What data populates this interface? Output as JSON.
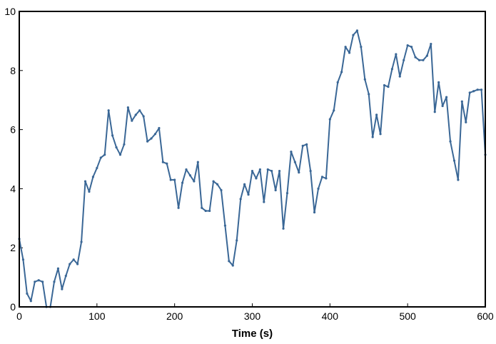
{
  "chart_data": {
    "type": "line",
    "title": "",
    "xlabel": "Time (s)",
    "ylabel": "",
    "xlim": [
      0,
      600
    ],
    "ylim": [
      0,
      10
    ],
    "xticks": [
      0,
      100,
      200,
      300,
      400,
      500,
      600
    ],
    "yticks": [
      0,
      2,
      4,
      6,
      8,
      10
    ],
    "grid": false,
    "legend": "none",
    "line_color": "#3a6796",
    "series": [
      {
        "x": [
          0,
          5,
          10,
          15,
          20,
          25,
          30,
          35,
          40,
          45,
          50,
          55,
          60,
          65,
          70,
          75,
          80,
          85,
          90,
          95,
          100,
          105,
          110,
          115,
          120,
          125,
          130,
          135,
          140,
          145,
          150,
          155,
          160,
          165,
          170,
          175,
          180,
          185,
          190,
          195,
          200,
          205,
          210,
          215,
          220,
          225,
          230,
          235,
          240,
          245,
          250,
          255,
          260,
          265,
          270,
          275,
          280,
          285,
          290,
          295,
          300,
          305,
          310,
          315,
          320,
          325,
          330,
          335,
          340,
          345,
          350,
          355,
          360,
          365,
          370,
          375,
          380,
          385,
          390,
          395,
          400,
          405,
          410,
          415,
          420,
          425,
          430,
          435,
          440,
          445,
          450,
          455,
          460,
          465,
          470,
          475,
          480,
          485,
          490,
          495,
          500,
          505,
          510,
          515,
          520,
          525,
          530,
          535,
          540,
          545,
          550,
          555,
          560,
          565,
          570,
          575,
          580,
          585,
          590,
          595,
          600
        ],
        "y": [
          2.3,
          1.6,
          0.45,
          0.2,
          0.85,
          0.9,
          0.85,
          0.0,
          0.0,
          0.85,
          1.3,
          0.6,
          1.05,
          1.45,
          1.6,
          1.45,
          2.2,
          4.25,
          3.9,
          4.4,
          4.7,
          5.05,
          5.15,
          6.65,
          5.8,
          5.4,
          5.15,
          5.5,
          6.75,
          6.3,
          6.5,
          6.65,
          6.45,
          5.6,
          5.7,
          5.85,
          6.05,
          4.9,
          4.85,
          4.3,
          4.3,
          3.35,
          4.2,
          4.65,
          4.45,
          4.25,
          4.9,
          3.35,
          3.25,
          3.25,
          4.25,
          4.15,
          3.95,
          2.75,
          1.55,
          1.4,
          2.25,
          3.65,
          4.15,
          3.8,
          4.6,
          4.35,
          4.65,
          3.55,
          4.65,
          4.6,
          3.95,
          4.6,
          2.65,
          3.85,
          5.25,
          4.9,
          4.55,
          5.45,
          5.5,
          4.6,
          3.2,
          4.0,
          4.4,
          4.35,
          6.35,
          6.65,
          7.6,
          7.95,
          8.8,
          8.6,
          9.2,
          9.35,
          8.8,
          7.7,
          7.2,
          5.75,
          6.5,
          5.85,
          7.5,
          7.45,
          8.05,
          8.55,
          7.8,
          8.35,
          8.85,
          8.8,
          8.45,
          8.35,
          8.35,
          8.5,
          8.9,
          6.6,
          7.6,
          6.8,
          7.1,
          5.6,
          4.95,
          4.3,
          6.95,
          6.25,
          7.25,
          7.3,
          7.35,
          7.35,
          5.15
        ]
      }
    ]
  }
}
